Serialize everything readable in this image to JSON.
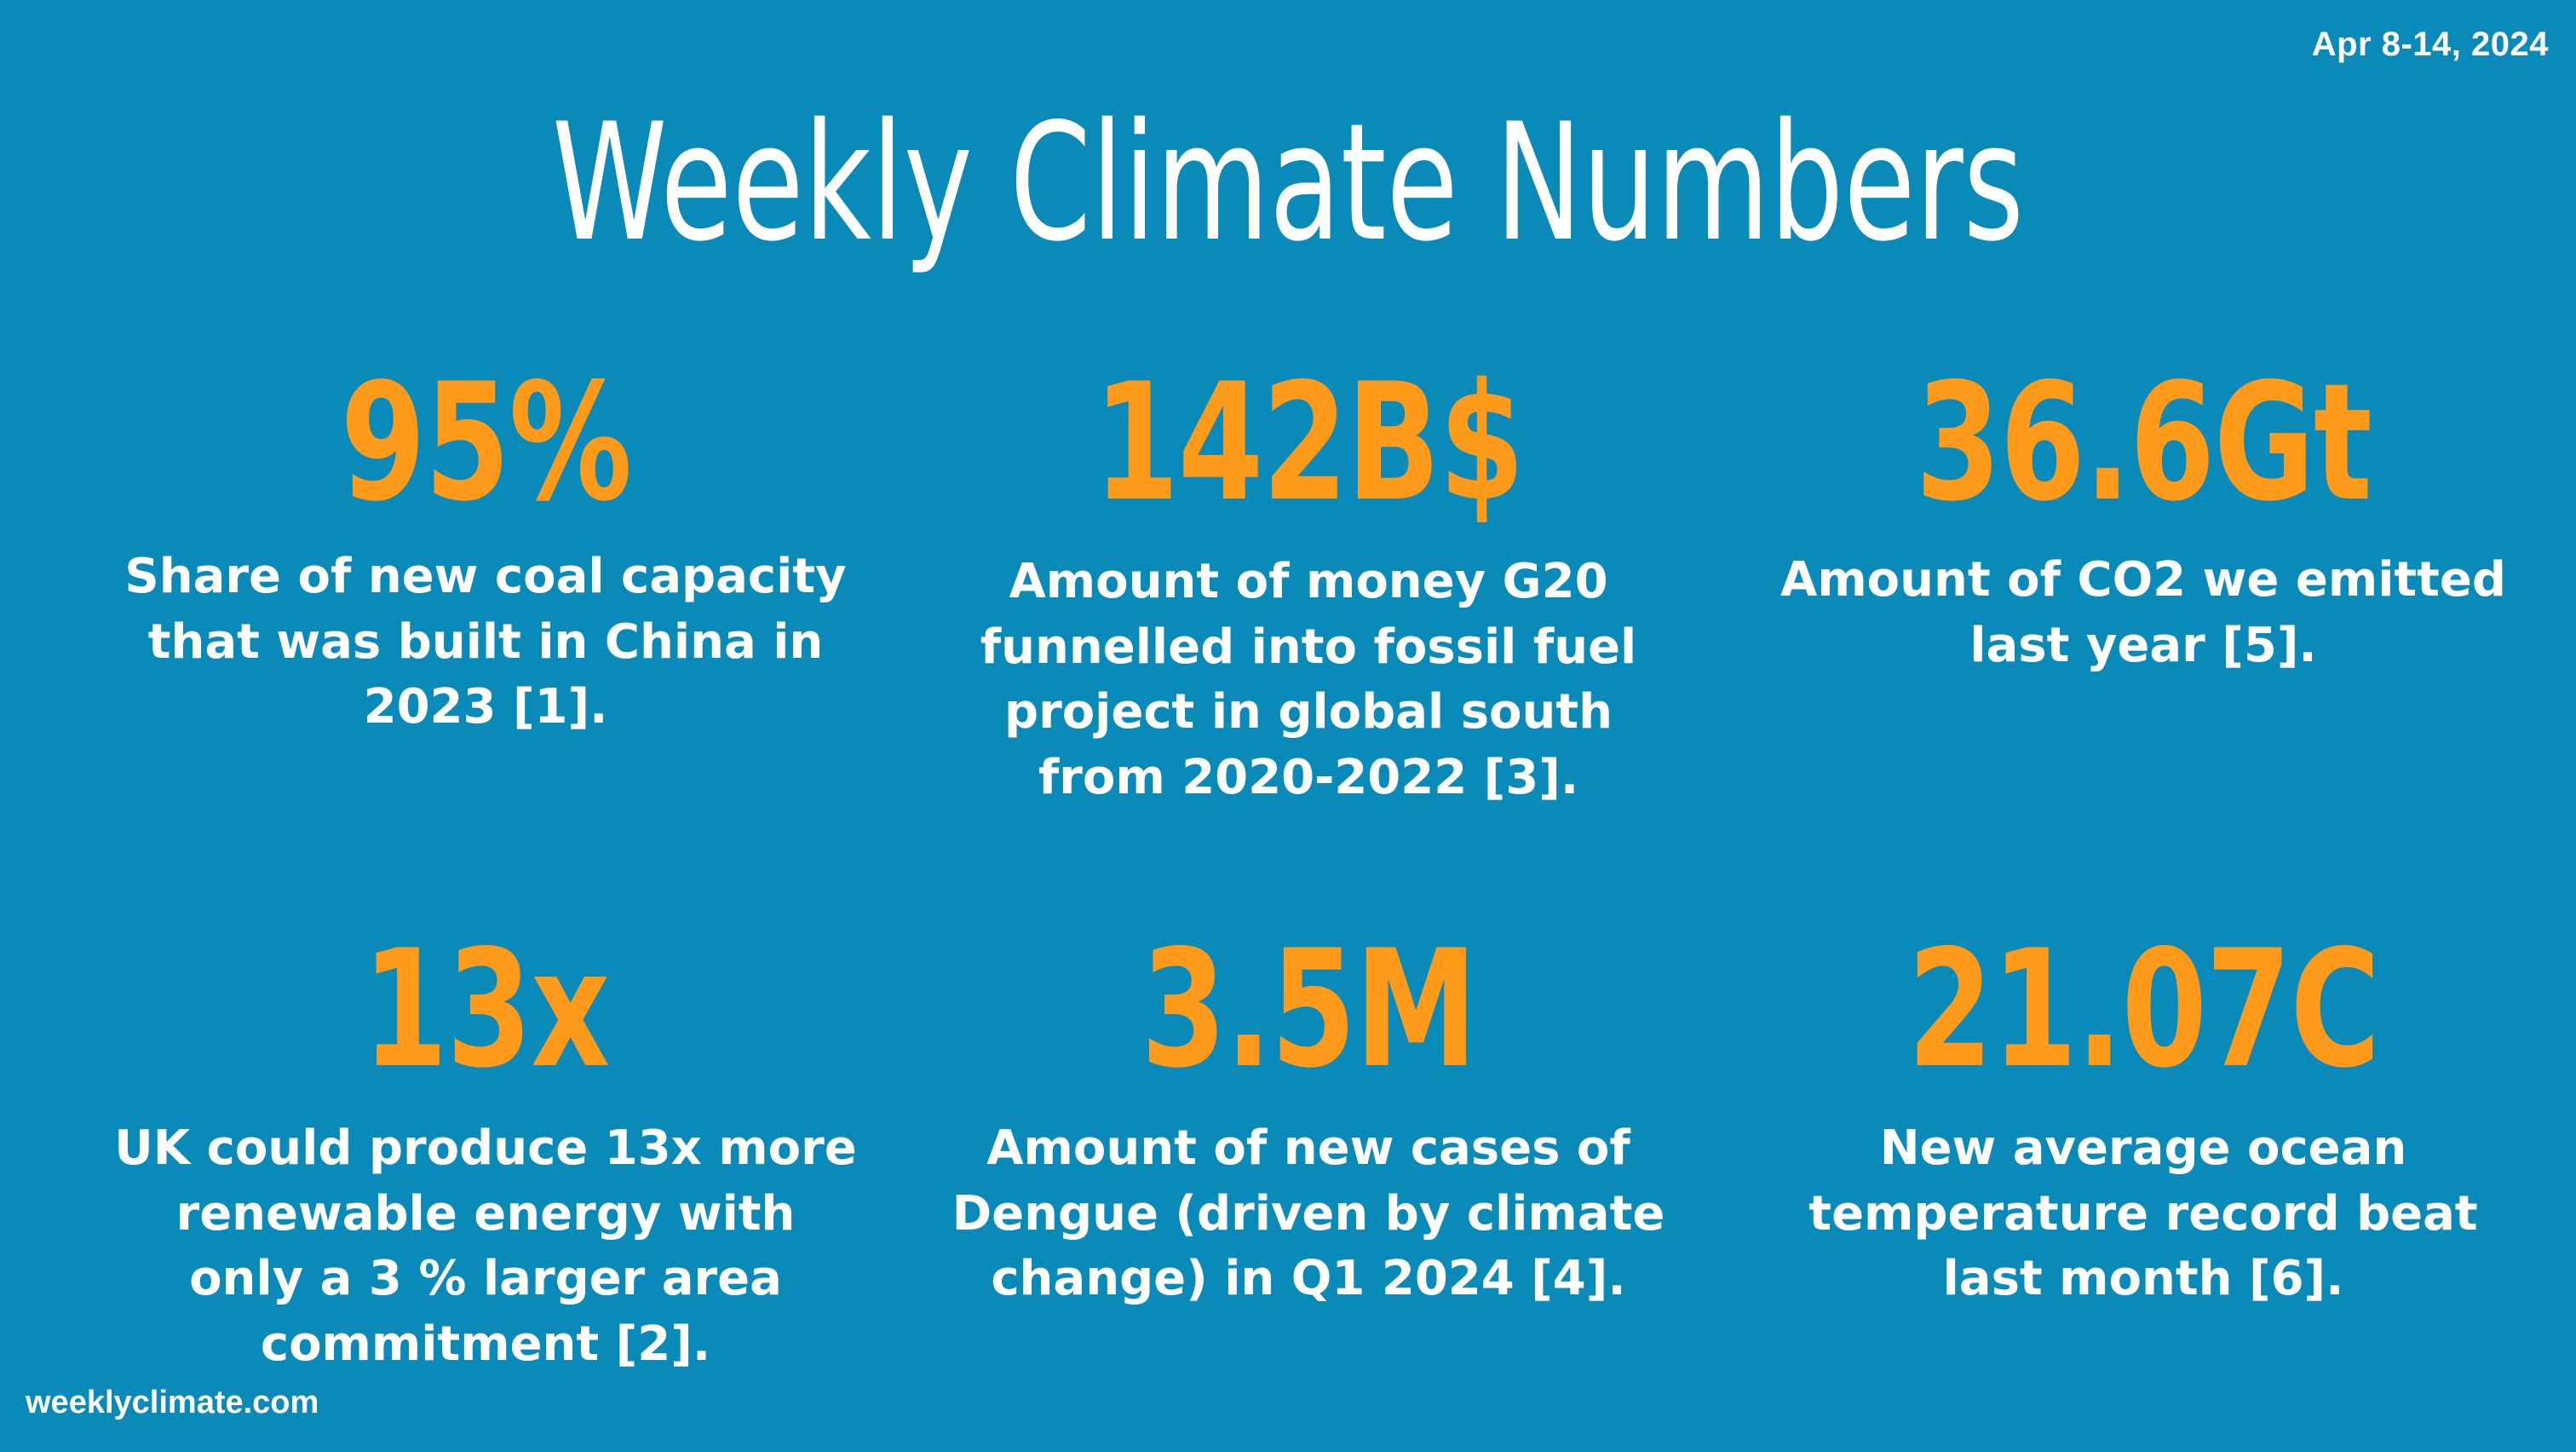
{
  "date": "Apr 8-14, 2024",
  "title": "Weekly Climate Numbers",
  "stats": [
    {
      "value": "95%",
      "description": "Share of new coal capacity that was built in China in 2023 [1]."
    },
    {
      "value": "142B$",
      "description": "Amount of money G20 funnelled into fossil fuel project in global south from 2020-2022 [3]."
    },
    {
      "value": "36.6Gt",
      "description": "Amount of CO2 we emitted last year [5]."
    },
    {
      "value": "13x",
      "description": "UK could produce 13x more renewable energy with only a 3 % larger area commitment [2]."
    },
    {
      "value": "3.5M",
      "description": "Amount of new cases of Dengue (driven by climate change) in Q1 2024 [4]."
    },
    {
      "value": "21.07C",
      "description": "New average ocean temperature record beat last month [6]."
    }
  ],
  "footer": "weeklyclimate.com",
  "colors": {
    "background": "#0a8ab8",
    "accent": "#ff9a1a",
    "text": "#ffffff"
  }
}
